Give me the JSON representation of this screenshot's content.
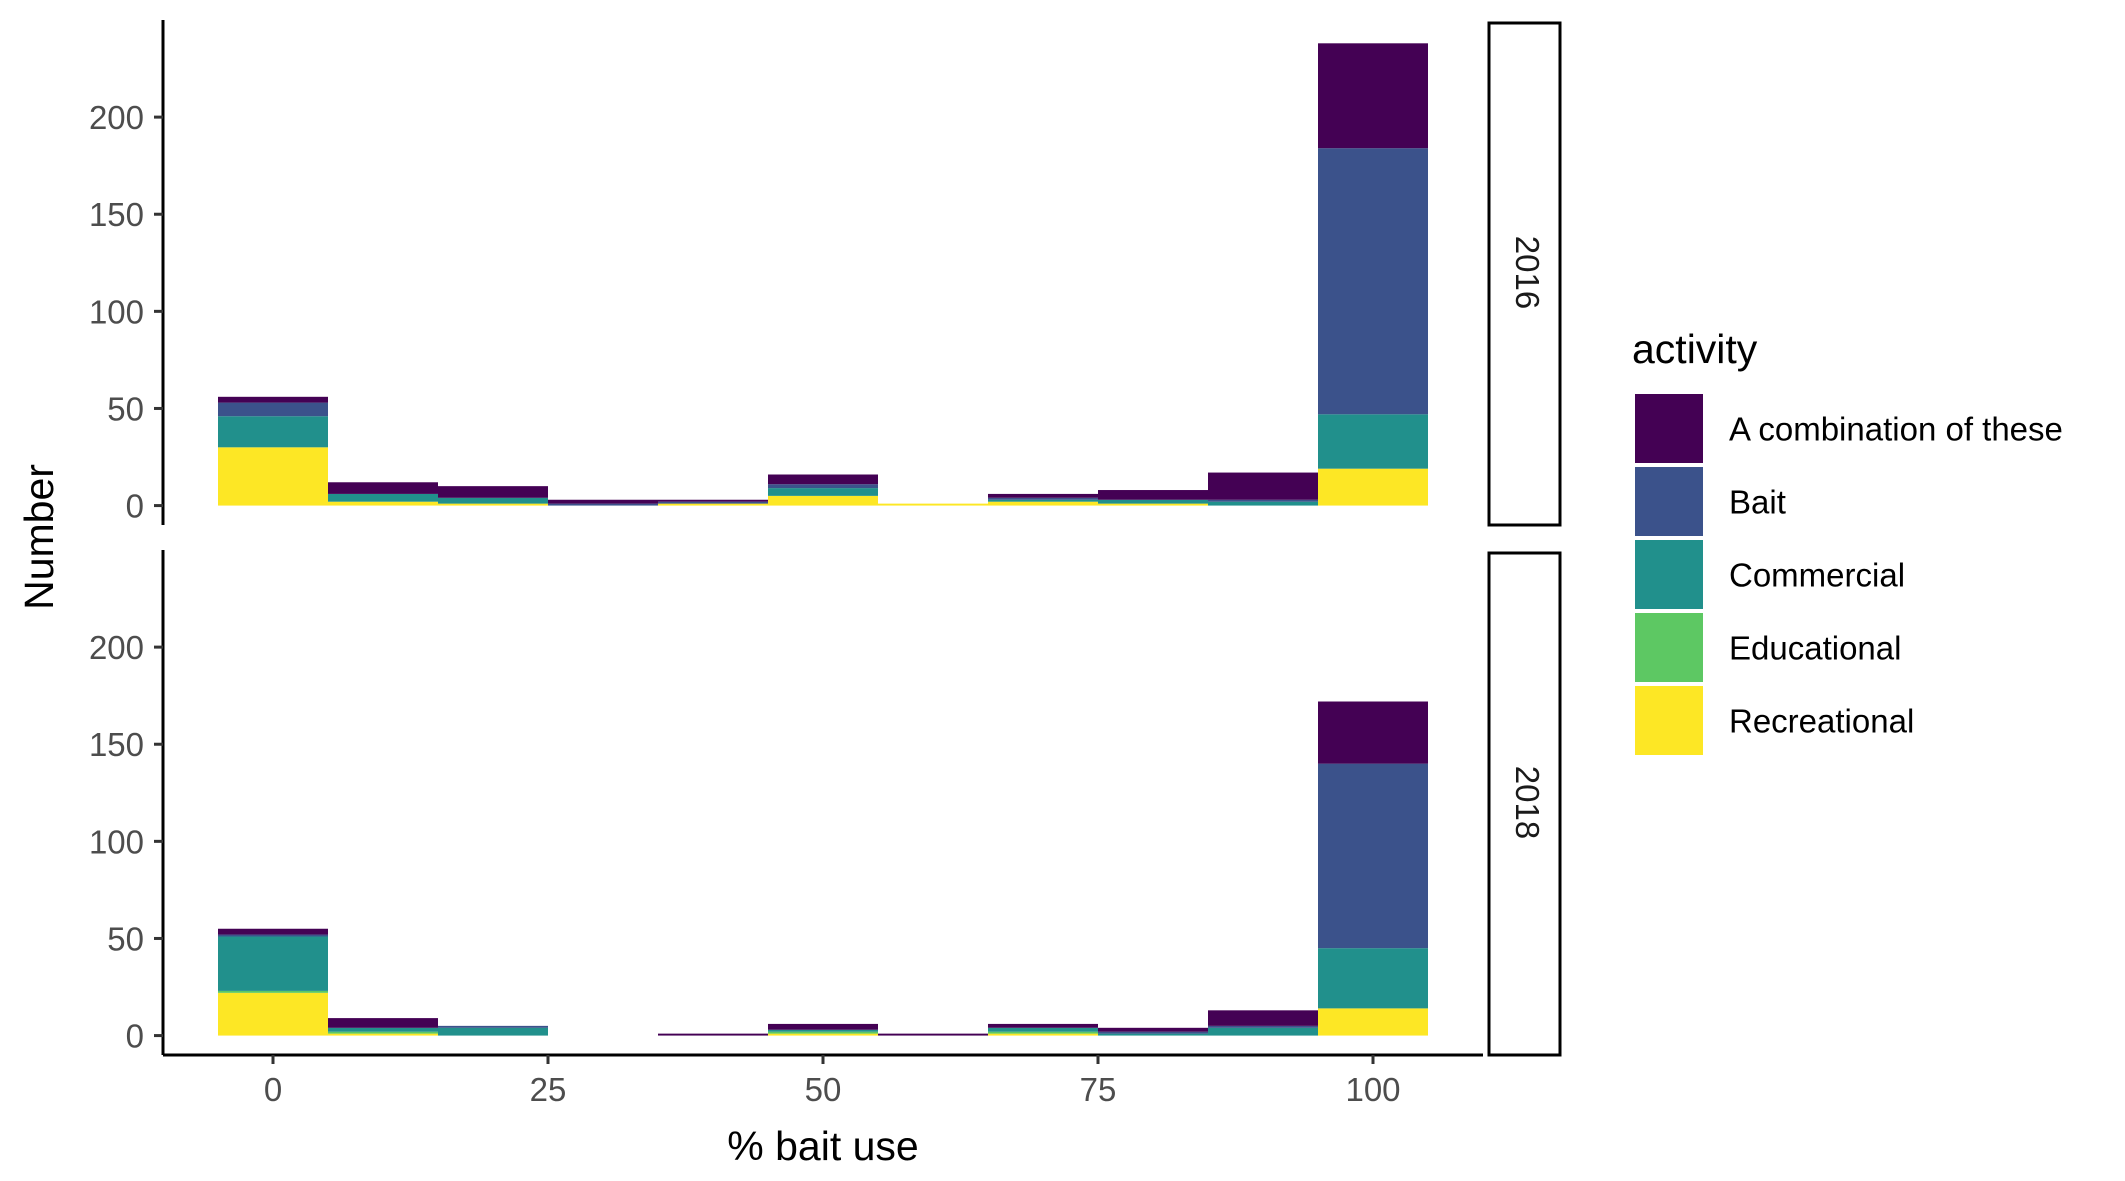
{
  "chart_data": {
    "type": "bar",
    "subtype": "stacked-histogram-facet",
    "xlabel": "% bait use",
    "ylabel": "Number",
    "xlim": [
      -10,
      110
    ],
    "ylim": [
      -10,
      250
    ],
    "x_ticks": [
      0,
      25,
      50,
      75,
      100
    ],
    "y_ticks": [
      0,
      50,
      100,
      150,
      200
    ],
    "bin_width": 10,
    "bin_centers": [
      0,
      10,
      20,
      30,
      40,
      50,
      60,
      70,
      80,
      90,
      100
    ],
    "grid": false,
    "legend": {
      "title": "activity",
      "position": "right",
      "entries": [
        {
          "name": "A combination of these",
          "color": "#440154"
        },
        {
          "name": "Bait",
          "color": "#3B528B"
        },
        {
          "name": "Commercial",
          "color": "#21908C"
        },
        {
          "name": "Educational",
          "color": "#5DC863"
        },
        {
          "name": "Recreational",
          "color": "#FDE725"
        }
      ]
    },
    "stack_order": [
      "Recreational",
      "Educational",
      "Commercial",
      "Bait",
      "A combination of these"
    ],
    "panels": [
      {
        "strip": "2016",
        "series": [
          {
            "name": "Recreational",
            "values": [
              30,
              2,
              1,
              0,
              1,
              5,
              1,
              2,
              1,
              0,
              19
            ]
          },
          {
            "name": "Educational",
            "values": [
              0,
              0,
              0,
              0,
              0,
              0,
              0,
              0,
              0,
              0,
              0
            ]
          },
          {
            "name": "Commercial",
            "values": [
              16,
              4,
              3,
              0,
              0,
              4,
              0,
              1,
              2,
              2,
              28
            ]
          },
          {
            "name": "Bait",
            "values": [
              7,
              0,
              0,
              1,
              1,
              2,
              0,
              1,
              0,
              1,
              137
            ]
          },
          {
            "name": "A combination of these",
            "values": [
              3,
              6,
              6,
              2,
              1,
              5,
              0,
              2,
              5,
              14,
              54
            ]
          }
        ]
      },
      {
        "strip": "2018",
        "series": [
          {
            "name": "Recreational",
            "values": [
              22,
              1,
              0,
              0,
              0,
              1,
              0,
              1,
              0,
              0,
              14
            ]
          },
          {
            "name": "Educational",
            "values": [
              1,
              1,
              0,
              0,
              0,
              1,
              0,
              1,
              0,
              0,
              0
            ]
          },
          {
            "name": "Commercial",
            "values": [
              28,
              2,
              4,
              0,
              0,
              1,
              0,
              2,
              1,
              4,
              31
            ]
          },
          {
            "name": "Bait",
            "values": [
              1,
              0,
              1,
              0,
              0,
              0,
              0,
              0,
              1,
              1,
              95
            ]
          },
          {
            "name": "A combination of these",
            "values": [
              3,
              5,
              0,
              0,
              1,
              3,
              1,
              2,
              2,
              8,
              32
            ]
          }
        ]
      }
    ]
  }
}
